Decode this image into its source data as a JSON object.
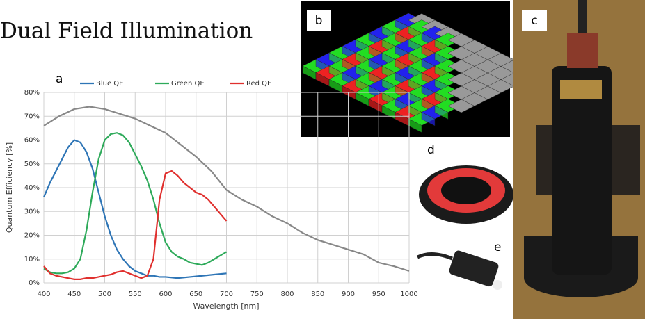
{
  "title": "Dual Field Illumination",
  "panel_labels": [
    "a",
    "b",
    "c",
    "d",
    "e"
  ],
  "chart_data": {
    "type": "line",
    "xlabel": "Wavelength [nm]",
    "ylabel": "Quantum Efficiency [%]",
    "xlim": [
      400,
      1000
    ],
    "xticks": [
      400,
      450,
      500,
      550,
      600,
      650,
      700,
      750,
      800,
      850,
      900,
      950,
      1000
    ],
    "ylim": [
      0,
      80
    ],
    "yticks": [
      {
        "value": 0,
        "label": "0%"
      },
      {
        "value": 10,
        "label": "10%"
      },
      {
        "value": 20,
        "label": "20%"
      },
      {
        "value": 30,
        "label": "30%"
      },
      {
        "value": 40,
        "label": "40%"
      },
      {
        "value": 50,
        "label": "50%"
      },
      {
        "value": 60,
        "label": "60%"
      },
      {
        "value": 70,
        "label": "70%"
      },
      {
        "value": 80,
        "label": "80%"
      }
    ],
    "grid": true,
    "series": [
      {
        "color": "#888888",
        "x": [
          400,
          425,
          450,
          475,
          500,
          525,
          550,
          575,
          600,
          625,
          650,
          675,
          700,
          725,
          750,
          775,
          800,
          825,
          850,
          875,
          900,
          925,
          950,
          975,
          1000
        ],
        "values": [
          66,
          70,
          73,
          74,
          73,
          71,
          69,
          66,
          63,
          58,
          53,
          47,
          39,
          35,
          32,
          28,
          25,
          21,
          18,
          16,
          14,
          12,
          8.5,
          7,
          5
        ]
      },
      {
        "name": "Blue QE",
        "color": "#2e75b6",
        "x": [
          400,
          410,
          420,
          430,
          440,
          450,
          460,
          470,
          480,
          490,
          500,
          510,
          520,
          530,
          540,
          550,
          560,
          570,
          580,
          590,
          600,
          620,
          640,
          660,
          680,
          700
        ],
        "values": [
          36,
          42,
          47,
          52,
          57,
          60,
          59,
          55,
          48,
          38,
          28,
          20,
          14,
          10,
          7,
          5,
          4,
          3,
          3,
          2.5,
          2.5,
          2,
          2.5,
          3,
          3.5,
          4
        ]
      },
      {
        "name": "Green QE",
        "color": "#2eaa5a",
        "x": [
          400,
          410,
          420,
          430,
          440,
          450,
          460,
          470,
          480,
          490,
          500,
          510,
          520,
          530,
          540,
          550,
          560,
          570,
          580,
          590,
          600,
          610,
          620,
          630,
          640,
          650,
          660,
          670,
          680,
          690,
          700
        ],
        "values": [
          6,
          4.5,
          4,
          4,
          4.5,
          6,
          10,
          22,
          38,
          52,
          60,
          62.5,
          63,
          62,
          59,
          54,
          49,
          43,
          35,
          25,
          17,
          13,
          11,
          10,
          8.5,
          8,
          7.5,
          8.5,
          10,
          11.5,
          13
        ]
      },
      {
        "name": "Red QE",
        "color": "#e0302e",
        "x": [
          400,
          410,
          420,
          430,
          440,
          450,
          460,
          470,
          480,
          490,
          500,
          510,
          520,
          530,
          540,
          550,
          560,
          570,
          580,
          590,
          600,
          610,
          620,
          630,
          640,
          650,
          660,
          670,
          680,
          690,
          700
        ],
        "values": [
          7,
          4,
          3,
          2.5,
          2,
          1.5,
          1.5,
          2,
          2,
          2.5,
          3,
          3.5,
          4.5,
          5,
          4,
          3,
          2,
          3,
          10,
          35,
          46,
          47,
          45,
          42,
          40,
          38,
          37,
          35,
          32,
          29,
          26
        ]
      }
    ]
  }
}
